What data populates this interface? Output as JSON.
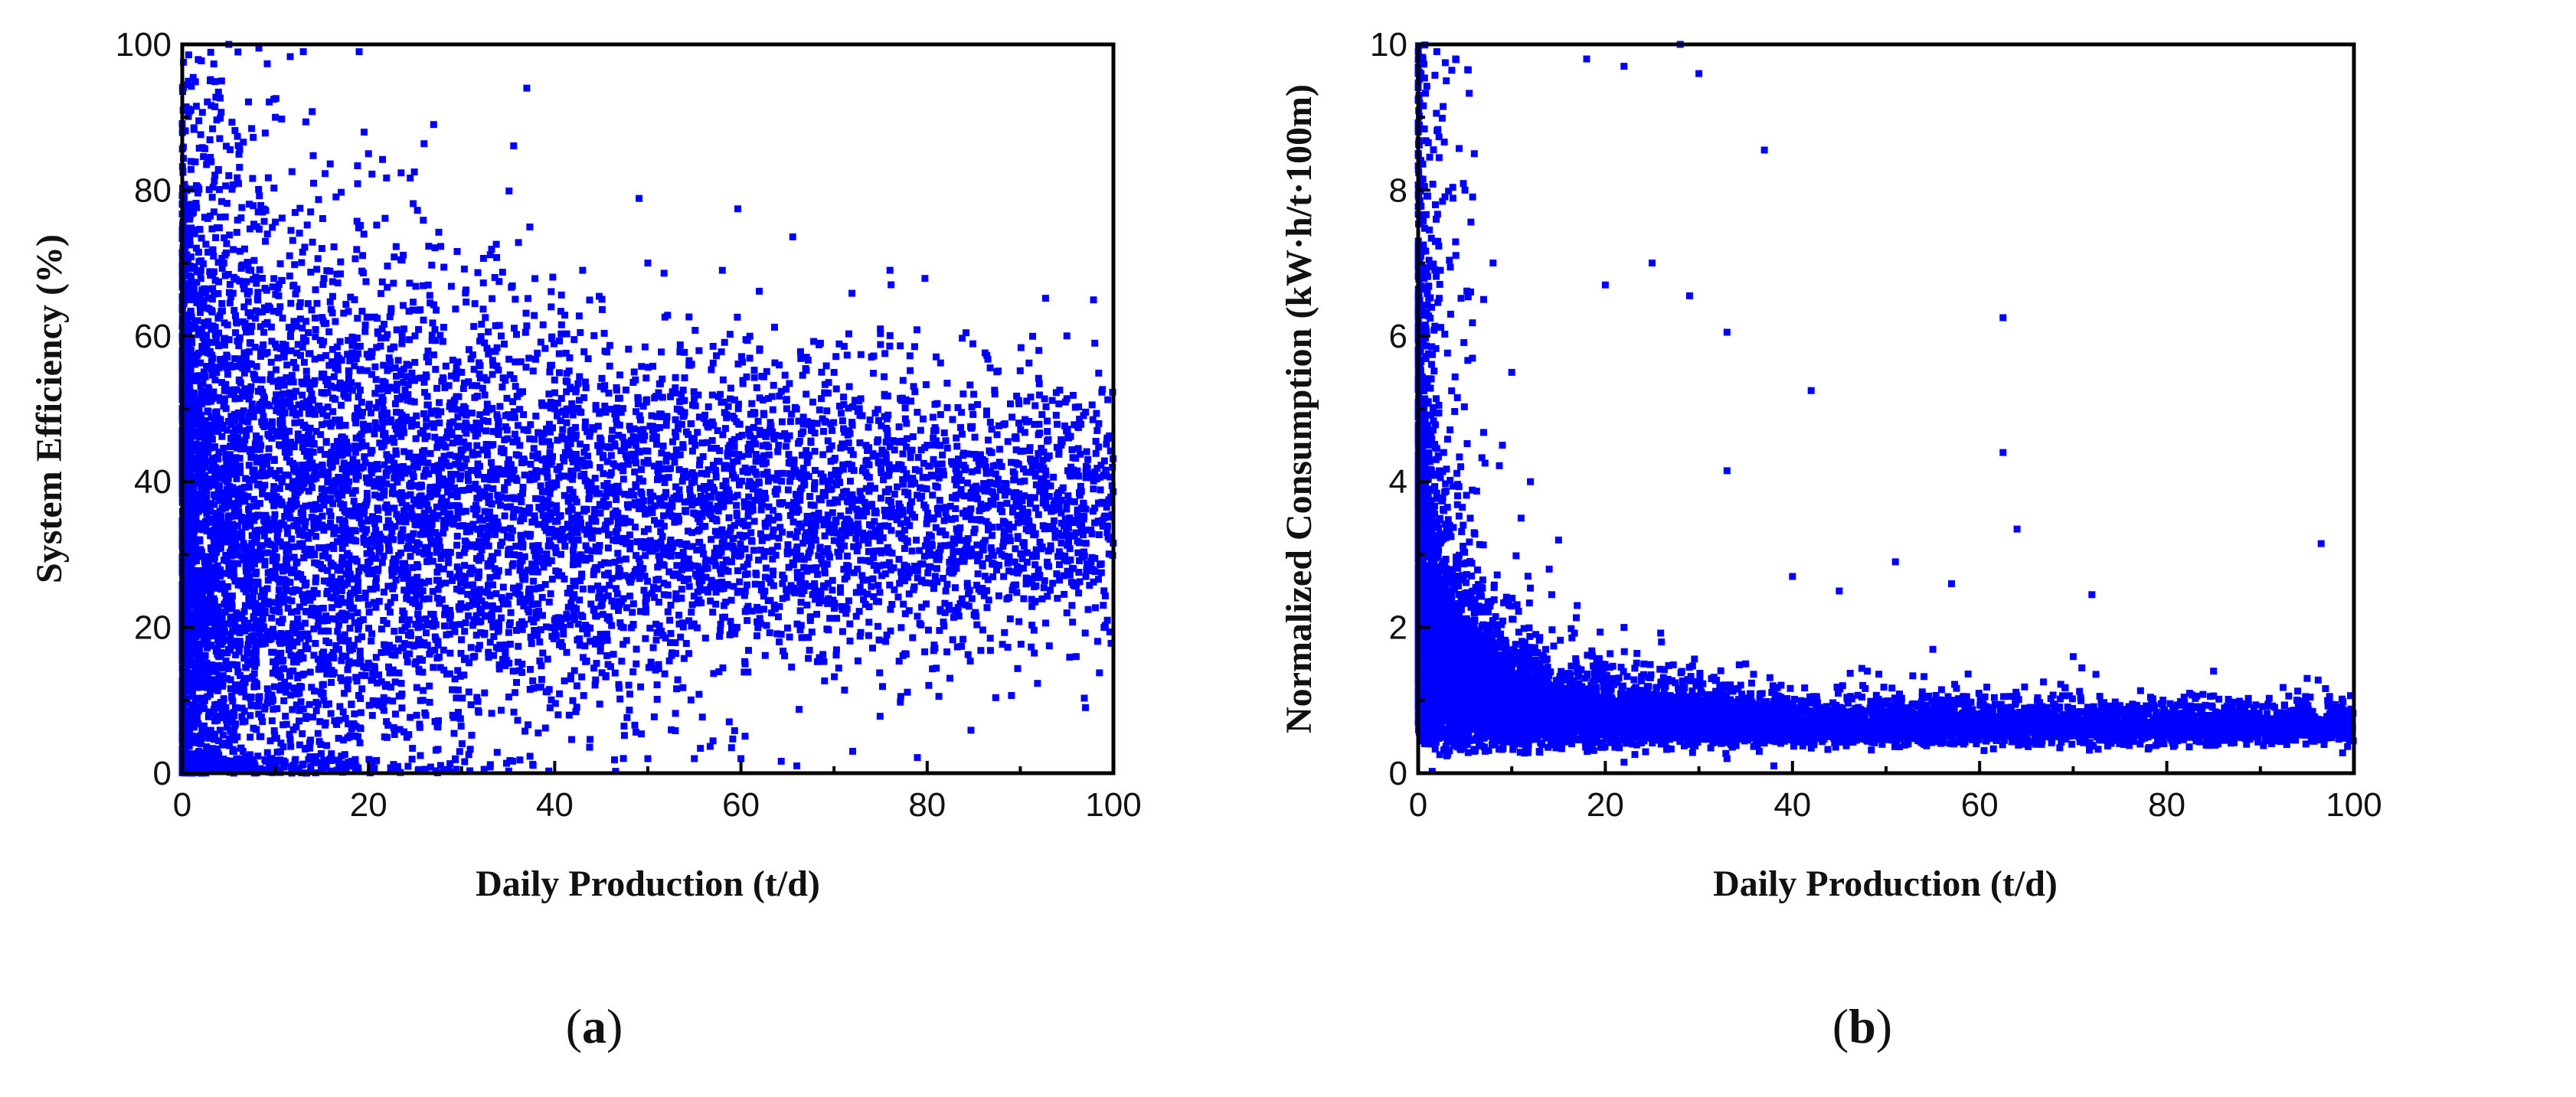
{
  "chart_data": [
    {
      "panel_label": "a",
      "type": "scatter",
      "title": "",
      "xlabel": "Daily Production (t/d)",
      "ylabel": "System Efficiency (%)",
      "xlim": [
        0,
        100
      ],
      "ylim": [
        0,
        100
      ],
      "xticks": [
        "0",
        "20",
        "40",
        "60",
        "80",
        "100"
      ],
      "yticks": [
        "0",
        "20",
        "40",
        "60",
        "80",
        "100"
      ],
      "marker_color": "#0000ff",
      "grid": false,
      "legend": "none",
      "sample_points": [
        [
          37,
          94
        ],
        [
          27,
          89
        ],
        [
          13,
          99
        ],
        [
          5,
          100
        ],
        [
          19,
          99
        ],
        [
          76,
          69
        ],
        [
          55,
          2
        ],
        [
          60,
          2
        ],
        [
          50,
          2
        ],
        [
          97,
          9
        ],
        [
          66,
          1
        ],
        [
          72,
          3
        ],
        [
          98,
          59
        ],
        [
          95,
          60
        ],
        [
          92,
          58
        ],
        [
          50,
          70
        ],
        [
          43,
          69
        ],
        [
          58,
          69
        ],
        [
          62,
          58
        ],
        [
          70,
          55
        ],
        [
          85,
          52
        ],
        [
          80,
          45
        ],
        [
          90,
          40
        ],
        [
          99,
          35
        ],
        [
          88,
          30
        ],
        [
          82,
          25
        ],
        [
          95,
          22
        ],
        [
          99,
          20
        ],
        [
          96,
          16
        ],
        [
          65,
          25
        ],
        [
          60,
          30
        ],
        [
          55,
          40
        ],
        [
          45,
          45
        ],
        [
          40,
          50
        ],
        [
          35,
          30
        ],
        [
          30,
          25
        ],
        [
          25,
          15
        ],
        [
          22,
          10
        ],
        [
          18,
          5
        ],
        [
          12,
          62
        ],
        [
          8,
          75
        ],
        [
          5,
          82
        ],
        [
          3,
          95
        ],
        [
          10,
          90
        ],
        [
          15,
          72
        ],
        [
          20,
          85
        ],
        [
          25,
          60
        ],
        [
          30,
          55
        ],
        [
          28,
          45
        ],
        [
          33,
          38
        ]
      ]
    },
    {
      "panel_label": "b",
      "type": "scatter",
      "title": "",
      "xlabel": "Daily Production (t/d)",
      "ylabel": "Normalized Consumption (kW·h/t·100m)",
      "xlim": [
        0,
        100
      ],
      "ylim": [
        0,
        10
      ],
      "xticks": [
        "0",
        "20",
        "40",
        "60",
        "80",
        "100"
      ],
      "yticks": [
        "0",
        "2",
        "4",
        "6",
        "8",
        "10"
      ],
      "marker_color": "#0000ff",
      "grid": false,
      "legend": "none",
      "sample_points": [
        [
          37,
          8.55
        ],
        [
          30,
          9.6
        ],
        [
          22,
          9.7
        ],
        [
          18,
          9.8
        ],
        [
          28,
          10.0
        ],
        [
          62.5,
          6.25
        ],
        [
          42,
          5.25
        ],
        [
          62.5,
          4.4
        ],
        [
          33,
          4.15
        ],
        [
          25,
          7.0
        ],
        [
          29,
          6.55
        ],
        [
          33,
          6.05
        ],
        [
          20,
          6.7
        ],
        [
          96.5,
          3.15
        ],
        [
          64,
          3.35
        ],
        [
          51,
          2.9
        ],
        [
          57,
          2.6
        ],
        [
          72,
          2.45
        ],
        [
          40,
          2.7
        ],
        [
          45,
          2.5
        ],
        [
          55,
          1.7
        ],
        [
          70,
          1.6
        ],
        [
          85,
          1.4
        ],
        [
          95,
          1.3
        ],
        [
          15,
          3.2
        ],
        [
          12,
          4.0
        ],
        [
          10,
          5.5
        ],
        [
          8,
          7.0
        ],
        [
          6,
          8.5
        ],
        [
          4,
          9.8
        ],
        [
          3,
          9.5
        ],
        [
          2,
          9.9
        ],
        [
          5,
          8.0
        ],
        [
          7,
          6.5
        ],
        [
          9,
          4.5
        ],
        [
          11,
          3.5
        ],
        [
          14,
          2.8
        ],
        [
          17,
          2.3
        ],
        [
          22,
          2.0
        ],
        [
          26,
          1.8
        ],
        [
          35,
          1.5
        ],
        [
          48,
          1.4
        ],
        [
          38,
          0.1
        ],
        [
          33,
          0.2
        ],
        [
          22,
          0.15
        ]
      ]
    }
  ]
}
